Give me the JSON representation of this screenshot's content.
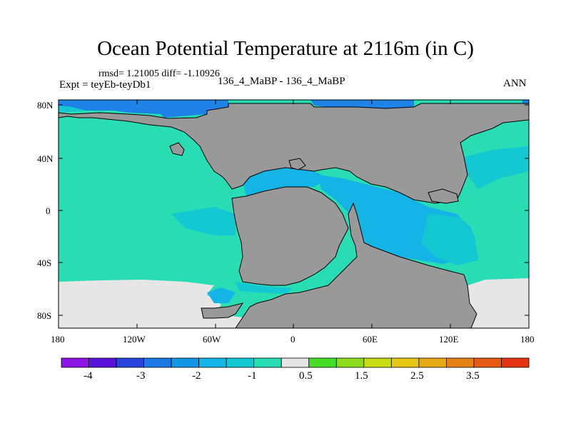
{
  "title": "Ocean Potential Temperature at 2116m (in C)",
  "stats": "rmsd= 1.21005  diff= -1.10926",
  "expt": "Expt = teyEb-teyDb1",
  "subtitle": "136_4_MaBP - 136_4_MaBP",
  "season": "ANN",
  "axes": {
    "y_ticks": [
      "80N",
      "40N",
      "0",
      "40S",
      "80S"
    ],
    "x_ticks": [
      "180",
      "120W",
      "60W",
      "0",
      "60E",
      "120E",
      "180"
    ]
  },
  "colors": {
    "land": "#999999",
    "ocean_main": "#28dcb4",
    "ocean_mid": "#14c8d2",
    "ocean_deep": "#14b4e6",
    "ocean_cold": "#1e82e6",
    "ocean_warm_neutral": "#e6e6e6",
    "coast": "#000000"
  },
  "colorbar": {
    "colors": [
      "#8c14e6",
      "#5a14dc",
      "#2846dc",
      "#1e78e6",
      "#1496e6",
      "#14b4e6",
      "#14c8d2",
      "#28dcb4",
      "#e6e6e6",
      "#46dc28",
      "#8cdc1e",
      "#c8dc14",
      "#e6c814",
      "#e6aa14",
      "#e68214",
      "#e65a14",
      "#e63214"
    ],
    "labels": [
      "-4",
      "-3",
      "-2",
      "-1",
      "0.5",
      "1.5",
      "2.5",
      "3.5"
    ]
  }
}
